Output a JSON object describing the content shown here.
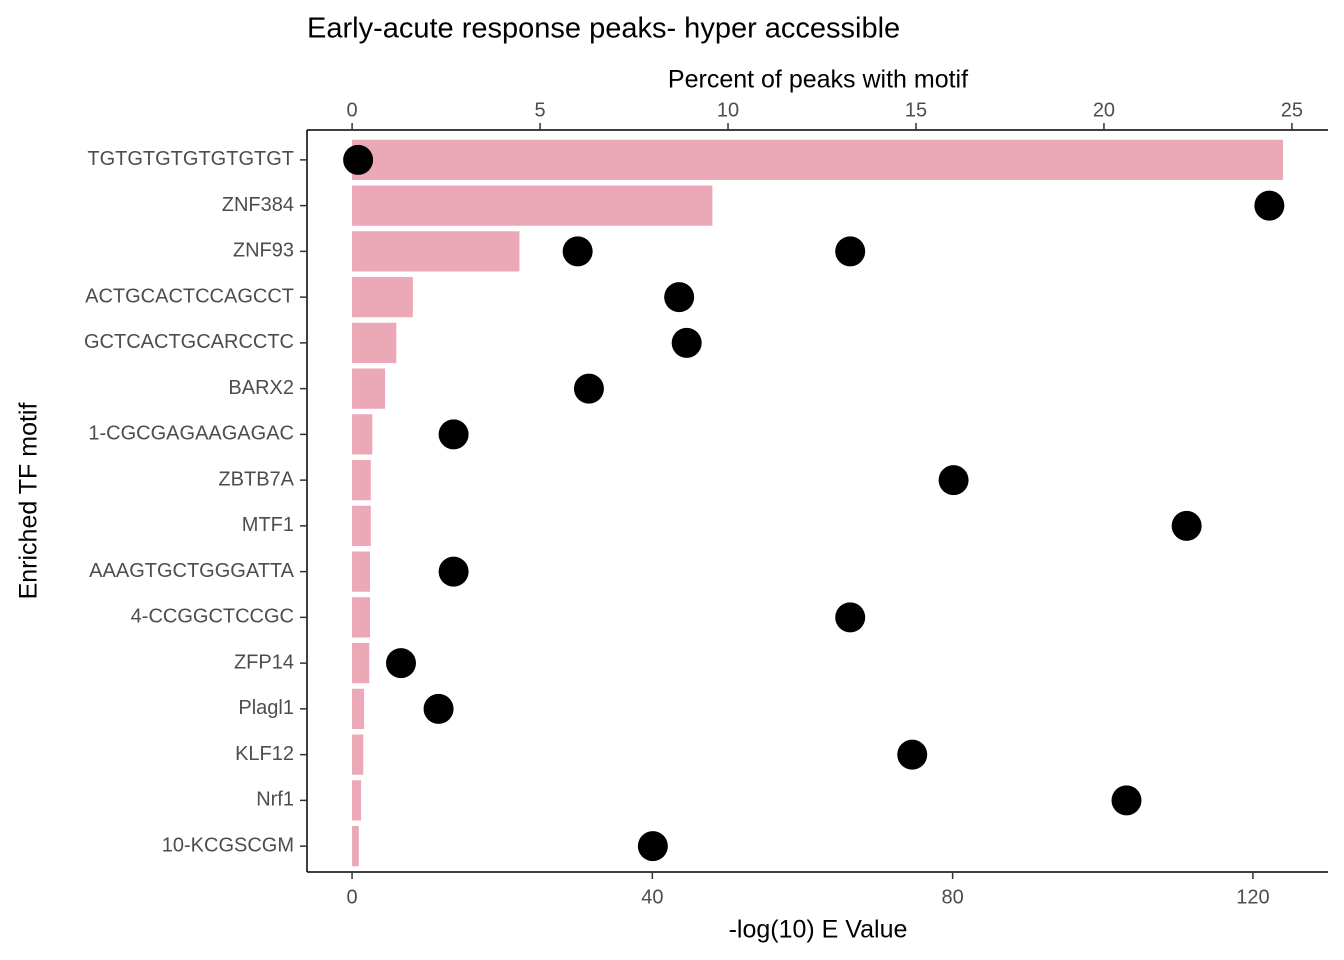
{
  "chart_data": {
    "type": "bar",
    "title": "Early-acute response peaks- hyper accessible",
    "x_label": "-log(10) E Value",
    "x2_label": "Percent of peaks with motif",
    "y_label": "Enriched TF motif",
    "categories": [
      "TGTGTGTGTGTGTGT",
      "ZNF384",
      "ZNF93",
      "ACTGCACTCCAGCCT",
      "GCTCACTGCARCCTC",
      "BARX2",
      "1-CGCGAGAAGAGAC",
      "ZBTB7A",
      "MTF1",
      "AAAGTGCTGGGATTA",
      "4-CCGGCTCCGC",
      "ZFP14",
      "Plagl1",
      "KLF12",
      "Nrf1",
      "10-KCGSCGM"
    ],
    "values": [
      124,
      48,
      22.3,
      8.1,
      5.9,
      4.4,
      2.7,
      2.5,
      2.5,
      2.4,
      2.4,
      2.3,
      1.6,
      1.5,
      1.2,
      0.9
    ],
    "color": "#eba9b7",
    "xlim": [
      -6,
      130
    ],
    "xticks": [
      0,
      40,
      80,
      120
    ],
    "x2lim": [
      -1.2,
      25.96
    ],
    "x2ticks": [
      0,
      5,
      10,
      15,
      20,
      25
    ],
    "series": [
      {
        "type": "scatter",
        "axis": "x2",
        "color": "#000000",
        "values": [
          0.16,
          24.4,
          6.0,
          8.7,
          8.9,
          6.3,
          2.7,
          16.0,
          22.2,
          2.7,
          13.25,
          1.3,
          2.3,
          14.9,
          20.6,
          8.0
        ]
      },
      {
        "type": "scatter",
        "axis": "x2",
        "color": "#000000",
        "values": [
          null,
          null,
          13.25,
          null,
          null,
          null,
          null,
          null,
          null,
          null,
          null,
          null,
          null,
          null,
          null,
          null
        ]
      }
    ]
  }
}
